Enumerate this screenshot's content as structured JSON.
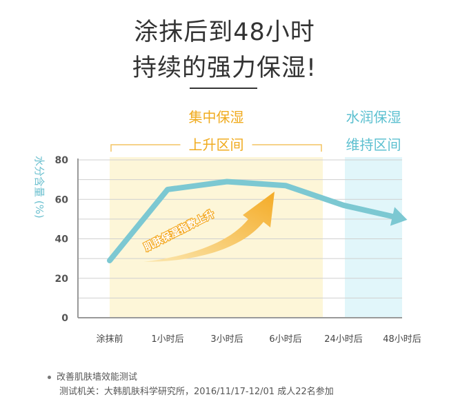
{
  "heading": {
    "line1": "涂抹后到48小时",
    "line2": "持续的强力保湿!"
  },
  "chart_data": {
    "type": "line",
    "title": "涂抹后到48小时 持续的强力保湿!",
    "ylabel": "水分含量 (%)",
    "xlabel": "",
    "categories": [
      "涂抹前",
      "1小时后",
      "3小时后",
      "6小时后",
      "24小时后",
      "48小时后"
    ],
    "series": [
      {
        "values": [
          29,
          65,
          69,
          67,
          57,
          51
        ]
      }
    ],
    "ylim": [
      0,
      80
    ],
    "yticks": [
      0,
      20,
      40,
      60,
      80
    ],
    "grid": true,
    "regions": [
      {
        "label_line1": "集中保湿",
        "label_line2": "上升区间",
        "from": 0,
        "to": 4,
        "color": "#fdf6d8",
        "text_color": "#f0ab1e"
      },
      {
        "label_line1": "水润保湿",
        "label_line2": "维持区间",
        "from": 4,
        "to": 5,
        "color": "#e1f6fa",
        "text_color": "#5cc0d0"
      }
    ],
    "annotation": "肌肤保湿指数上升",
    "line_color": "#7cc8d2",
    "arrow_color": "#f4ab26"
  },
  "footnote": {
    "line1": "改善肌肤墙效能测试",
    "line2": "测试机关：大韩肌肤科学研究所，2016/11/17-12/01 成人22名参加"
  }
}
